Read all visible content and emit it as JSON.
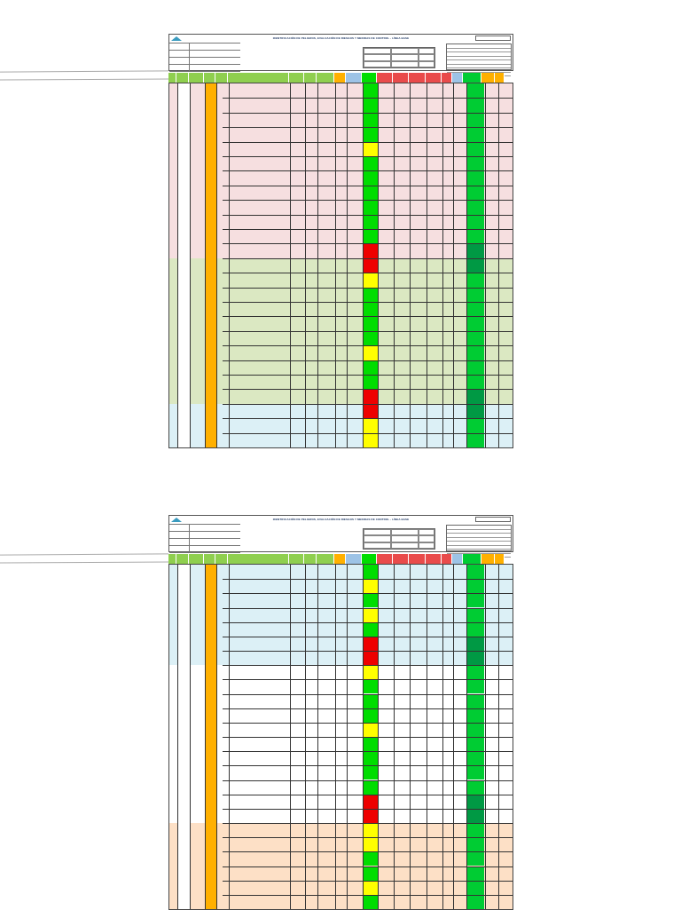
{
  "document": {
    "title": "IDENTIFICACIÓN DE PELIGROS, EVALUACIÓN DE RIESGOS Y MEDIDAS DE CONTROL - LÍNEA BASE",
    "pages": [
      {
        "title": "IDENTIFICACIÓN DE PELIGROS, EVALUACIÓN DE RIESGOS Y MEDIDAS DE CONTROL - LÍNEA BASE",
        "bands": [
          {
            "color": "#f6dfe0",
            "rows": 12
          },
          {
            "color": "#dbe8c2",
            "rows": 10
          },
          {
            "color": "#dcf0f6",
            "rows": 3
          }
        ],
        "risk_levels": [
          "green",
          "green",
          "green",
          "green",
          "yellow",
          "green",
          "green",
          "green",
          "green",
          "green",
          "green",
          "red",
          "red",
          "yellow",
          "green",
          "green",
          "green",
          "green",
          "yellow",
          "green",
          "green",
          "red",
          "red",
          "yellow",
          "yellow"
        ]
      },
      {
        "title": "IDENTIFICACIÓN DE PELIGROS, EVALUACIÓN DE RIESGOS Y MEDIDAS DE CONTROL - LÍNEA BASE",
        "bands": [
          {
            "color": "#dcf0f6",
            "rows": 7
          },
          {
            "color": "#ffffff",
            "rows": 11
          },
          {
            "color": "#fde0c6",
            "rows": 6
          }
        ],
        "risk_levels": [
          "green",
          "yellow",
          "green",
          "yellow",
          "green",
          "red",
          "red",
          "yellow",
          "green",
          "green",
          "green",
          "yellow",
          "green",
          "green",
          "green",
          "green",
          "red",
          "red",
          "yellow",
          "yellow",
          "green",
          "green",
          "yellow",
          "green"
        ]
      }
    ]
  },
  "colors": {
    "header_green": "#8fcf4f",
    "header_orange": "#ffb000",
    "header_blue": "#9dc3e6",
    "header_red": "#e94b4b",
    "risk_green": "#00dd00",
    "risk_yellow": "#ffff00",
    "risk_red": "#ee0000",
    "control_green": "#00cc33",
    "control_dark": "#009944"
  }
}
